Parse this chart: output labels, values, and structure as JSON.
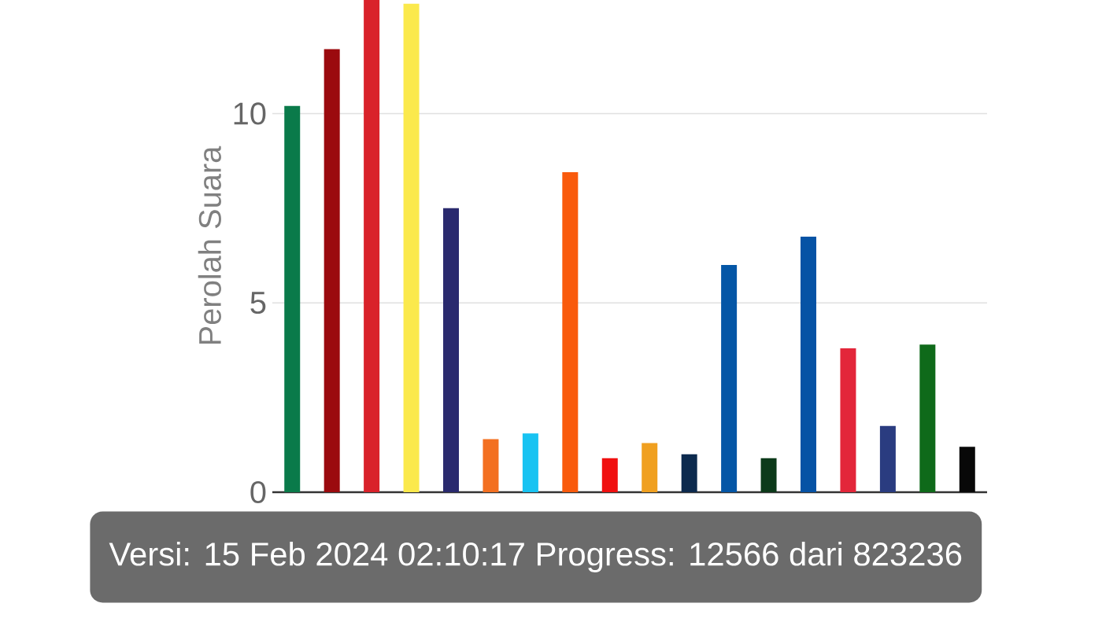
{
  "chart_data": {
    "type": "bar",
    "ylabel": "Perolah Suara",
    "categories": [
      null,
      null,
      null,
      null,
      null,
      null,
      null,
      null,
      null,
      null,
      null,
      null,
      null,
      null,
      null,
      null,
      null,
      null
    ],
    "values": [
      10.2,
      11.7,
      13,
      12.9,
      7.5,
      1.4,
      1.55,
      8.45,
      0.9,
      1.3,
      1.0,
      6.0,
      0.9,
      6.75,
      3.8,
      1.75,
      3.9,
      1.2
    ],
    "colors": [
      "#0a7a4a",
      "#9b0a0e",
      "#d9222a",
      "#fbe94c",
      "#2a2a6e",
      "#f37021",
      "#18c3f2",
      "#f95a0c",
      "#f01010",
      "#f0a020",
      "#0c2a4e",
      "#0456a6",
      "#0c3a1a",
      "#0653a5",
      "#e3263a",
      "#2a3c80",
      "#0f6a1a",
      "#080808"
    ],
    "ylim": [
      0,
      13
    ],
    "yticks": [
      0,
      5,
      10
    ],
    "grid": "y",
    "annotations": [
      "Versi: 15 Feb 2024 02:10:17 Progress: 12566 dari 823236"
    ]
  }
}
